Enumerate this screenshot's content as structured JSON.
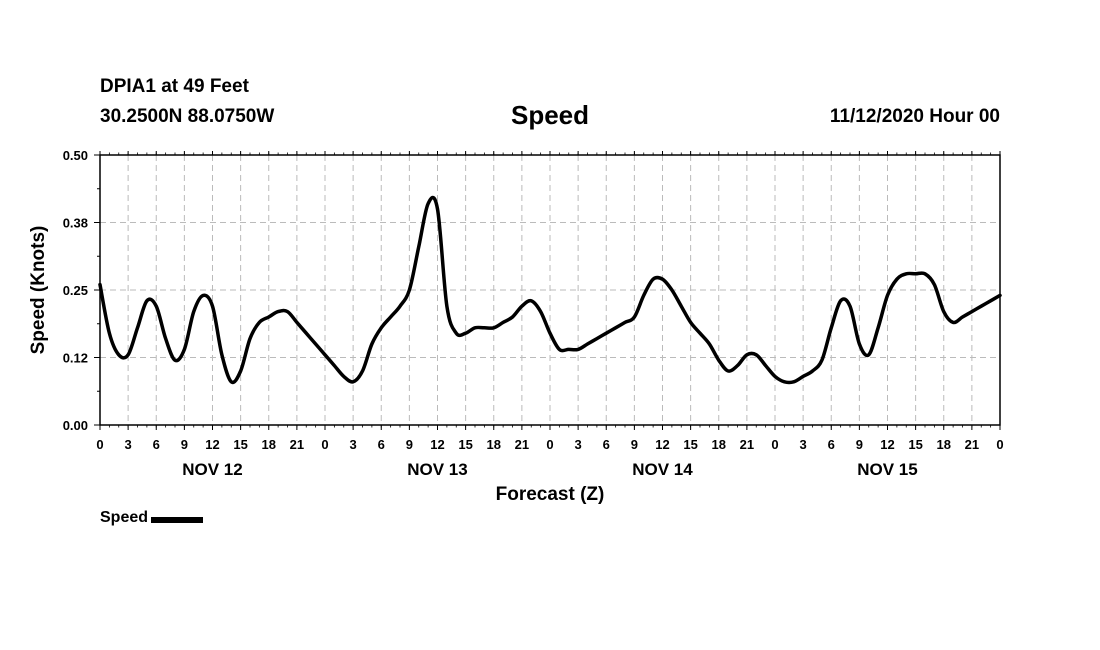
{
  "header": {
    "station": "DPIA1 at 49 Feet",
    "coordinates": "30.2500N 88.0750W",
    "title": "Speed",
    "datestamp": "11/12/2020 Hour 00"
  },
  "legend": {
    "label": "Speed",
    "color": "#000000"
  },
  "chart_data": {
    "type": "line",
    "title": "Speed",
    "xlabel": "Forecast (Z)",
    "ylabel": "Speed (Knots)",
    "xlim": [
      0,
      96
    ],
    "ylim": [
      0,
      0.5
    ],
    "y_ticks": [
      "0.00",
      "0.12",
      "0.25",
      "0.38",
      "0.50"
    ],
    "x_tick_labels": [
      "0",
      "3",
      "6",
      "9",
      "12",
      "15",
      "18",
      "21",
      "0",
      "3",
      "6",
      "9",
      "12",
      "15",
      "18",
      "21",
      "0",
      "3",
      "6",
      "9",
      "12",
      "15",
      "18",
      "21",
      "0",
      "3",
      "6",
      "9",
      "12",
      "15",
      "18",
      "21",
      "0"
    ],
    "day_labels": [
      "NOV 12",
      "NOV 13",
      "NOV 14",
      "NOV 15"
    ],
    "grid": true,
    "legend_position": "bottom-left",
    "series": [
      {
        "name": "Speed",
        "color": "#000000",
        "x": [
          0,
          1,
          2,
          3,
          4,
          5,
          6,
          7,
          8,
          9,
          10,
          11,
          12,
          13,
          14,
          15,
          16,
          17,
          18,
          19,
          20,
          21,
          22,
          23,
          24,
          25,
          26,
          27,
          28,
          29,
          30,
          31,
          32,
          33,
          34,
          35,
          36,
          37,
          38,
          39,
          40,
          41,
          42,
          43,
          44,
          45,
          46,
          47,
          48,
          49,
          50,
          51,
          52,
          53,
          54,
          55,
          56,
          57,
          58,
          59,
          60,
          61,
          62,
          63,
          64,
          65,
          66,
          67,
          68,
          69,
          70,
          71,
          72,
          73,
          74,
          75,
          76,
          77,
          78,
          79,
          80,
          81,
          82,
          83,
          84,
          85,
          86,
          87,
          88,
          89,
          90,
          91,
          92,
          93,
          94,
          95,
          96
        ],
        "y": [
          0.26,
          0.17,
          0.13,
          0.13,
          0.18,
          0.23,
          0.22,
          0.16,
          0.12,
          0.14,
          0.21,
          0.24,
          0.22,
          0.13,
          0.08,
          0.1,
          0.16,
          0.19,
          0.2,
          0.21,
          0.21,
          0.19,
          0.17,
          0.15,
          0.13,
          0.11,
          0.09,
          0.08,
          0.1,
          0.15,
          0.18,
          0.2,
          0.22,
          0.25,
          0.33,
          0.41,
          0.4,
          0.22,
          0.17,
          0.17,
          0.18,
          0.18,
          0.18,
          0.19,
          0.2,
          0.22,
          0.23,
          0.21,
          0.17,
          0.14,
          0.14,
          0.14,
          0.15,
          0.16,
          0.17,
          0.18,
          0.19,
          0.2,
          0.24,
          0.27,
          0.27,
          0.25,
          0.22,
          0.19,
          0.17,
          0.15,
          0.12,
          0.1,
          0.11,
          0.13,
          0.13,
          0.11,
          0.09,
          0.08,
          0.08,
          0.09,
          0.1,
          0.12,
          0.18,
          0.23,
          0.22,
          0.15,
          0.13,
          0.18,
          0.24,
          0.27,
          0.28,
          0.28,
          0.28,
          0.26,
          0.21,
          0.19,
          0.2,
          0.21,
          0.22,
          0.23,
          0.24
        ]
      }
    ]
  }
}
